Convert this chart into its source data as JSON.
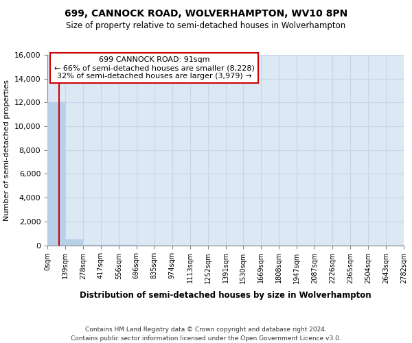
{
  "title": "699, CANNOCK ROAD, WOLVERHAMPTON, WV10 8PN",
  "subtitle": "Size of property relative to semi-detached houses in Wolverhampton",
  "xlabel": "Distribution of semi-detached houses by size in Wolverhampton",
  "ylabel": "Number of semi-detached properties",
  "footer_line1": "Contains HM Land Registry data © Crown copyright and database right 2024.",
  "footer_line2": "Contains public sector information licensed under the Open Government Licence v3.0.",
  "property_size": 91,
  "property_label": "699 CANNOCK ROAD: 91sqm",
  "pct_smaller": 66,
  "num_smaller": 8228,
  "pct_larger": 32,
  "num_larger": 3979,
  "bin_edges": [
    0,
    139,
    278,
    417,
    556,
    696,
    835,
    974,
    1113,
    1252,
    1391,
    1530,
    1669,
    1808,
    1947,
    2087,
    2226,
    2365,
    2504,
    2643,
    2782
  ],
  "bin_counts": [
    12050,
    480,
    5,
    2,
    1,
    0,
    0,
    0,
    0,
    0,
    0,
    0,
    0,
    0,
    0,
    0,
    0,
    0,
    0,
    0
  ],
  "bar_color": "#b8cfe8",
  "grid_color": "#c8d5e8",
  "background_color": "#dde8f5",
  "property_line_color": "#cc0000",
  "ylim_max": 16000,
  "yticks": [
    0,
    2000,
    4000,
    6000,
    8000,
    10000,
    12000,
    14000,
    16000
  ],
  "tick_labels": [
    "0sqm",
    "139sqm",
    "278sqm",
    "417sqm",
    "556sqm",
    "696sqm",
    "835sqm",
    "974sqm",
    "1113sqm",
    "1252sqm",
    "1391sqm",
    "1530sqm",
    "1669sqm",
    "1808sqm",
    "1947sqm",
    "2087sqm",
    "2226sqm",
    "2365sqm",
    "2504sqm",
    "2643sqm",
    "2782sqm"
  ]
}
